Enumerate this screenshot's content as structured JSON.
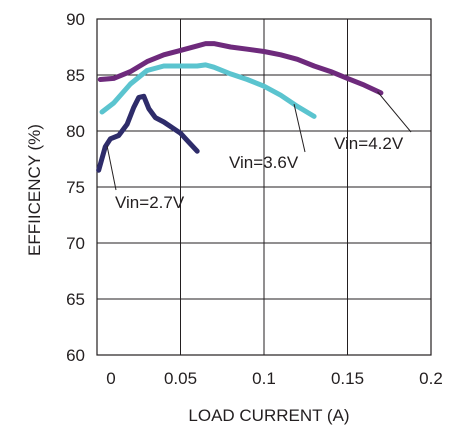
{
  "chart_data": {
    "type": "line",
    "xlabel": "LOAD CURRENT (A)",
    "ylabel": "EFFIICENCY (%)",
    "xlim": [
      0,
      0.2
    ],
    "ylim": [
      60,
      90
    ],
    "x_ticks": [
      0,
      0.05,
      0.1,
      0.15,
      0.2
    ],
    "x_tick_labels": [
      "0",
      "0.05",
      "0.1",
      "0.15",
      "0.2"
    ],
    "y_ticks": [
      60,
      65,
      70,
      75,
      80,
      85,
      90
    ],
    "y_tick_labels": [
      "60",
      "65",
      "70",
      "75",
      "80",
      "85",
      "90"
    ],
    "grid": true,
    "series": [
      {
        "name": "Vin=4.2V",
        "color": "#6e2a7c",
        "x": [
          0.002,
          0.01,
          0.02,
          0.03,
          0.04,
          0.05,
          0.06,
          0.065,
          0.07,
          0.08,
          0.09,
          0.1,
          0.11,
          0.12,
          0.13,
          0.14,
          0.15,
          0.16,
          0.17
        ],
        "y": [
          84.6,
          84.7,
          85.3,
          86.2,
          86.8,
          87.2,
          87.6,
          87.8,
          87.8,
          87.5,
          87.3,
          87.1,
          86.8,
          86.4,
          85.8,
          85.3,
          84.7,
          84.1,
          83.4
        ]
      },
      {
        "name": "Vin=3.6V",
        "color": "#5bc4cf",
        "x": [
          0.003,
          0.01,
          0.02,
          0.03,
          0.04,
          0.05,
          0.06,
          0.065,
          0.07,
          0.08,
          0.09,
          0.1,
          0.11,
          0.12,
          0.13
        ],
        "y": [
          81.7,
          82.5,
          84.2,
          85.4,
          85.8,
          85.8,
          85.8,
          85.9,
          85.7,
          85.1,
          84.6,
          84.0,
          83.2,
          82.2,
          81.3
        ]
      },
      {
        "name": "Vin=2.7V",
        "color": "#2e2c6a",
        "x": [
          0.001,
          0.005,
          0.008,
          0.013,
          0.018,
          0.022,
          0.025,
          0.028,
          0.031,
          0.035,
          0.04,
          0.045,
          0.05,
          0.055,
          0.06
        ],
        "y": [
          76.5,
          78.6,
          79.3,
          79.6,
          80.6,
          82.1,
          83.0,
          83.1,
          82.0,
          81.2,
          80.8,
          80.3,
          79.8,
          79.0,
          78.2
        ]
      }
    ],
    "annotations": [
      {
        "text": "Vin=4.2V",
        "series": "Vin=4.2V"
      },
      {
        "text": "Vin=3.6V",
        "series": "Vin=3.6V"
      },
      {
        "text": "Vin=2.7V",
        "series": "Vin=2.7V"
      }
    ]
  }
}
